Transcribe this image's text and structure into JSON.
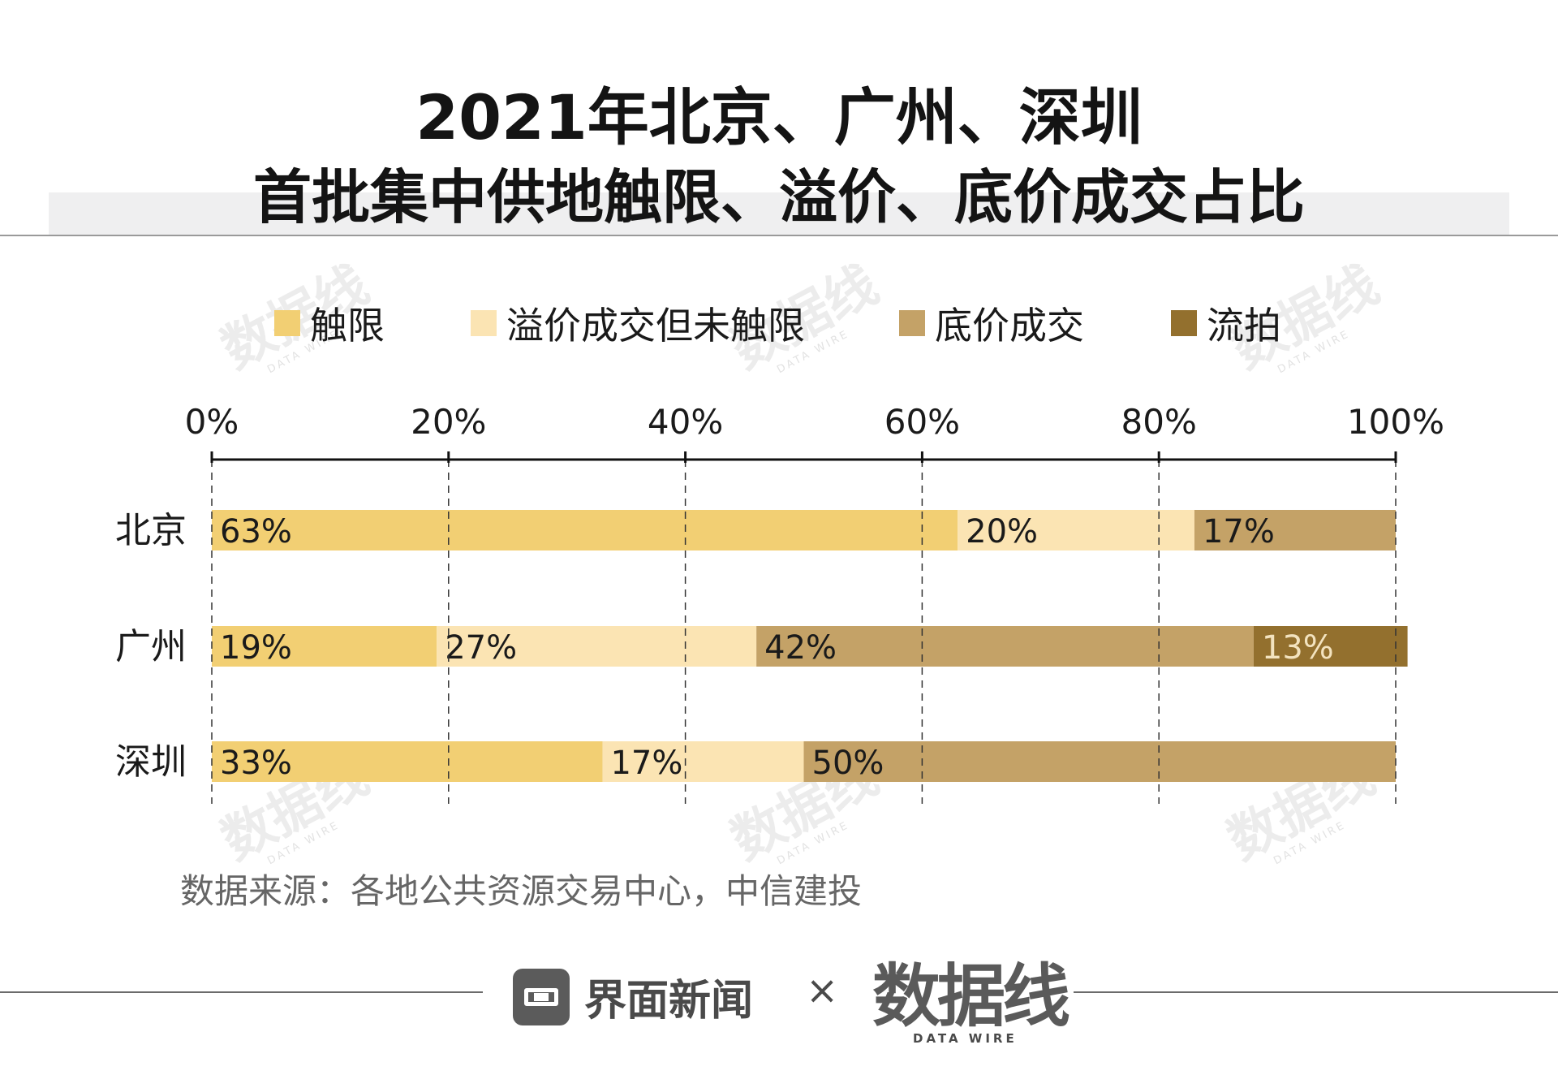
{
  "title": {
    "line1": "2021年北京、广州、深圳",
    "line2": "首批集中供地触限、溢价、底价成交占比"
  },
  "legend": [
    {
      "label": "触限",
      "color": "#f2cf73"
    },
    {
      "label": "溢价成交但未触限",
      "color": "#fbe4b3"
    },
    {
      "label": "底价成交",
      "color": "#c4a267"
    },
    {
      "label": "流拍",
      "color": "#93702e"
    }
  ],
  "chart_data": {
    "type": "bar",
    "orientation": "horizontal",
    "stacked": true,
    "categories": [
      "北京",
      "广州",
      "深圳"
    ],
    "series": [
      {
        "name": "触限",
        "values": [
          63,
          19,
          33
        ],
        "labels": [
          "63%",
          "19%",
          "33%"
        ],
        "color": "#f2cf73"
      },
      {
        "name": "溢价成交但未触限",
        "values": [
          20,
          27,
          17
        ],
        "labels": [
          "20%",
          "27%",
          "17%"
        ],
        "color": "#fbe4b3"
      },
      {
        "name": "底价成交",
        "values": [
          17,
          42,
          50
        ],
        "labels": [
          "17%",
          "42%",
          "50%"
        ],
        "color": "#c4a267"
      },
      {
        "name": "流拍",
        "values": [
          0,
          13,
          0
        ],
        "labels": [
          "",
          "13%",
          ""
        ],
        "color": "#93702e"
      }
    ],
    "xlim": [
      0,
      100
    ],
    "ticks": [
      0,
      20,
      40,
      60,
      80,
      100
    ],
    "tick_labels": [
      "0%",
      "20%",
      "40%",
      "60%",
      "80%",
      "100%"
    ],
    "axis_position": "top",
    "grid": "vertical-dashed",
    "legend_position": "top"
  },
  "source": "数据来源：各地公共资源交易中心，中信建投",
  "watermark": {
    "text": "数据线",
    "sub": "DATA WIRE"
  },
  "footer": {
    "brand": "界面新闻",
    "times": "×",
    "partner": "数据线",
    "partner_sub": "DATA WIRE"
  }
}
